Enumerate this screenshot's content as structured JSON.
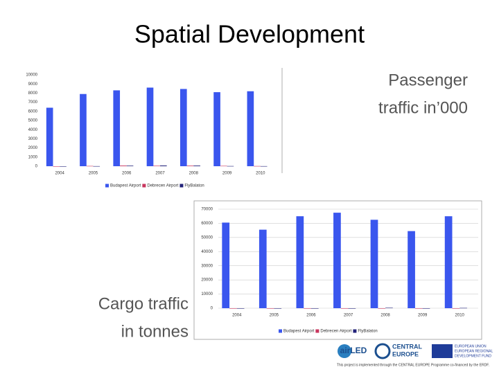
{
  "slide": {
    "title": "Spatial Development",
    "passenger_caption": [
      "Passenger",
      "traffic in’000"
    ],
    "cargo_caption": [
      "Cargo traffic",
      "in tonnes"
    ],
    "footer": {
      "logo_airled": "airLED",
      "logo_ce": [
        "CENTRAL",
        "EUROPE"
      ],
      "logo_eu": [
        "EUROPEAN UNION",
        "EUROPEAN REGIONAL",
        "DEVELOPMENT FUND"
      ],
      "note": "This project is implemented through the CENTRAL EUROPE Programme co-financed by the ERDF."
    }
  },
  "chart_data": [
    {
      "type": "bar",
      "categories": [
        "2004",
        "2005",
        "2006",
        "2007",
        "2008",
        "2009",
        "2010"
      ],
      "series": [
        {
          "name": "Budapest Airport",
          "color": "#3a56ee",
          "values": [
            6400,
            7900,
            8300,
            8600,
            8450,
            8100,
            8200
          ]
        },
        {
          "name": "Debrecen Airport",
          "color": "#c8365e",
          "values": [
            0,
            30,
            70,
            50,
            60,
            40,
            20
          ]
        },
        {
          "name": "FlyBalaton",
          "color": "#23237a",
          "values": [
            0,
            10,
            60,
            80,
            70,
            20,
            10
          ]
        }
      ],
      "ylim": [
        0,
        10000
      ],
      "yticks": [
        0,
        1000,
        2000,
        3000,
        4000,
        5000,
        6000,
        7000,
        8000,
        9000,
        10000
      ],
      "grid": false,
      "frame": false
    },
    {
      "type": "bar",
      "categories": [
        "2004",
        "2005",
        "2006",
        "2007",
        "2008",
        "2009",
        "2010"
      ],
      "series": [
        {
          "name": "Budapest Airport",
          "color": "#3a56ee",
          "values": [
            60500,
            55500,
            65000,
            67500,
            62500,
            54500,
            65000
          ]
        },
        {
          "name": "Debrecen Airport",
          "color": "#c8365e",
          "values": [
            0,
            0,
            0,
            0,
            0,
            0,
            0
          ]
        },
        {
          "name": "FlyBalaton",
          "color": "#23237a",
          "values": [
            0,
            0,
            0,
            0,
            300,
            0,
            200
          ]
        }
      ],
      "ylim": [
        0,
        70000
      ],
      "yticks": [
        0,
        10000,
        20000,
        30000,
        40000,
        50000,
        60000,
        70000
      ],
      "grid": true,
      "frame": true
    }
  ]
}
